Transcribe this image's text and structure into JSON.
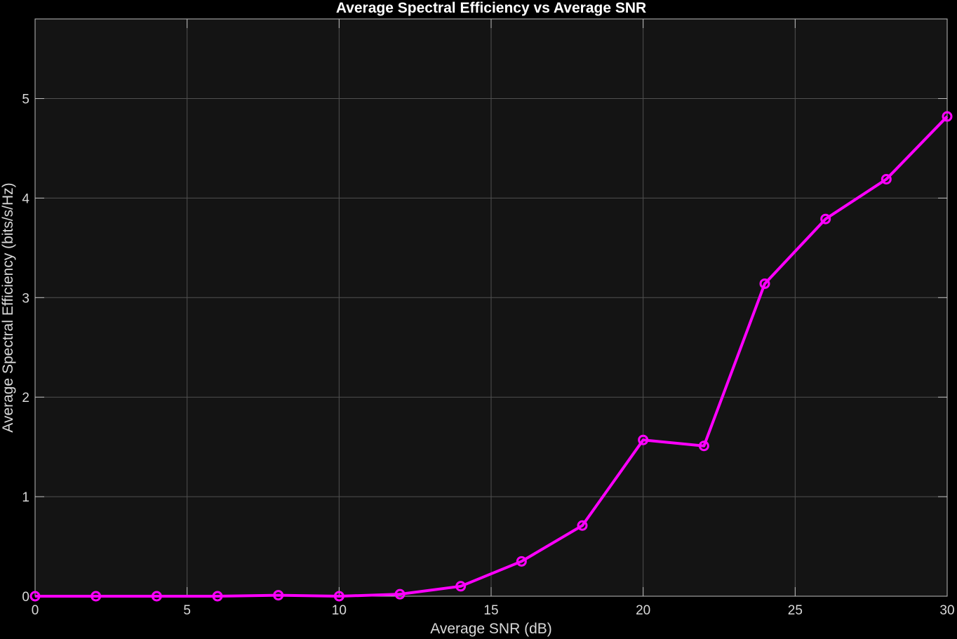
{
  "chart_data": {
    "type": "line",
    "title": "Average Spectral Efficiency vs Average SNR",
    "xlabel": "Average SNR (dB)",
    "ylabel": "Average Spectral Efficiency (bits/s/Hz)",
    "xlim": [
      0,
      30
    ],
    "ylim": [
      0,
      5.8
    ],
    "xticks": [
      0,
      5,
      10,
      15,
      20,
      25,
      30
    ],
    "yticks": [
      0,
      1,
      2,
      3,
      4,
      5
    ],
    "grid": true,
    "colors": {
      "background": "#000000",
      "plot_area": "#141414",
      "grid": "#505050",
      "axis": "#bdbdbd",
      "series": "#ff00ff"
    },
    "series": [
      {
        "marker": "circle",
        "x": [
          0,
          2,
          4,
          6,
          8,
          10,
          12,
          14,
          16,
          18,
          20,
          22,
          24,
          26,
          28,
          30
        ],
        "y": [
          0,
          0,
          0,
          0,
          0.01,
          0,
          0.02,
          0.1,
          0.35,
          0.71,
          1.57,
          1.51,
          3.14,
          3.79,
          4.19,
          4.82
        ]
      }
    ]
  }
}
